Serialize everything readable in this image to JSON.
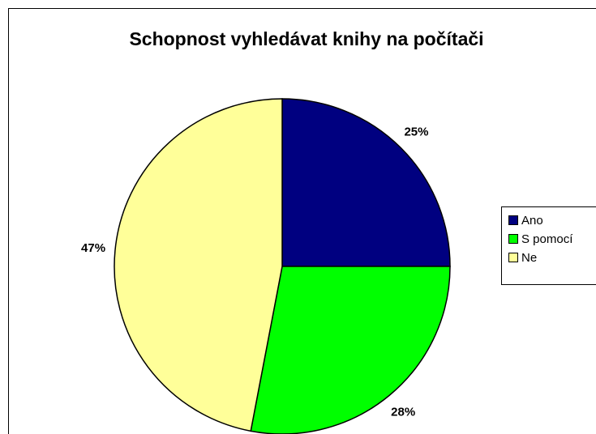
{
  "chart_data": {
    "type": "pie",
    "title": "Schopnost vyhledávat knihy na počítači",
    "categories": [
      "Ano",
      "S pomocí",
      "Ne"
    ],
    "values": [
      25,
      28,
      47
    ],
    "value_labels": [
      "25%",
      "28%",
      "47%"
    ],
    "colors": [
      "#000080",
      "#00ff00",
      "#ffff99"
    ],
    "legend": "right"
  }
}
